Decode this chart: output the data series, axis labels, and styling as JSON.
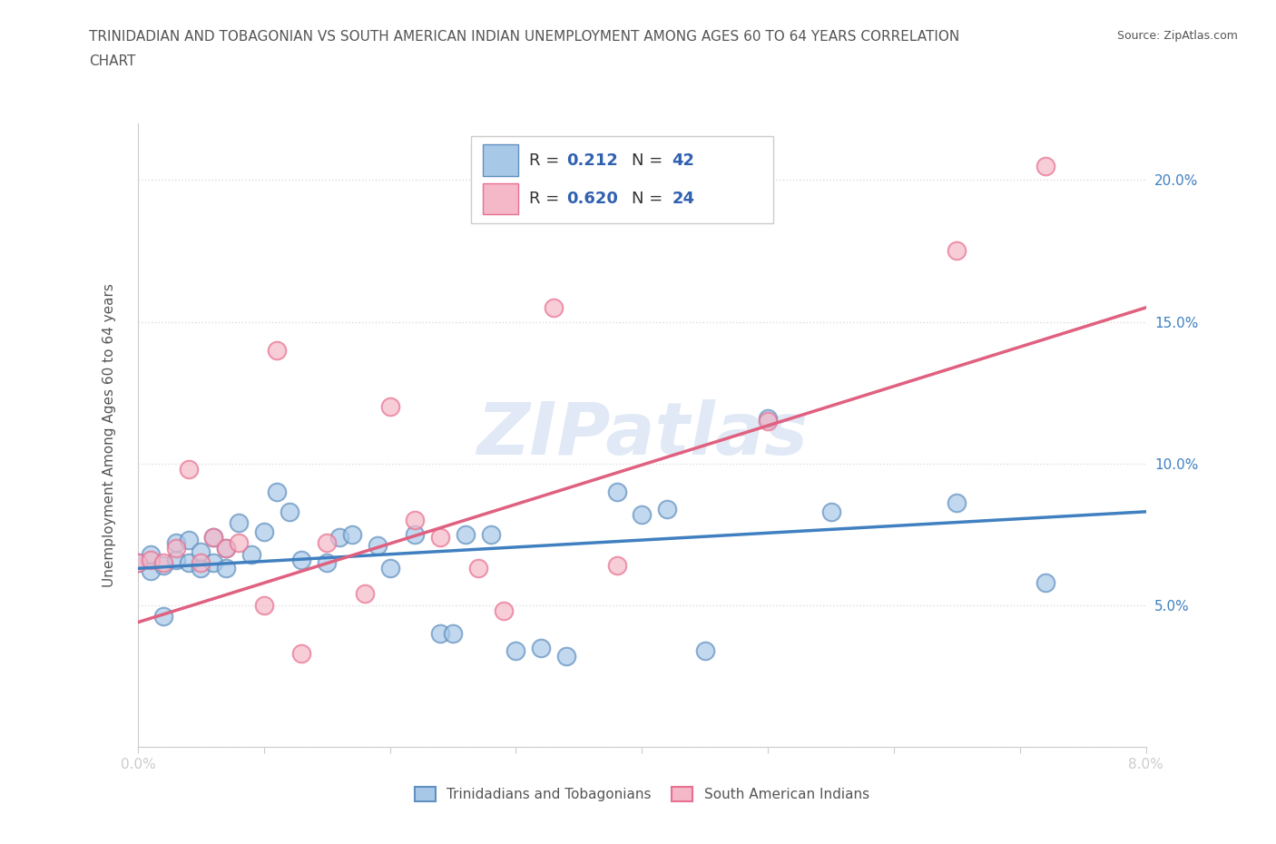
{
  "title_line1": "TRINIDADIAN AND TOBAGONIAN VS SOUTH AMERICAN INDIAN UNEMPLOYMENT AMONG AGES 60 TO 64 YEARS CORRELATION",
  "title_line2": "CHART",
  "source": "Source: ZipAtlas.com",
  "ylabel": "Unemployment Among Ages 60 to 64 years",
  "xlim": [
    0.0,
    0.08
  ],
  "ylim": [
    0.0,
    0.22
  ],
  "xticks": [
    0.0,
    0.01,
    0.02,
    0.03,
    0.04,
    0.05,
    0.06,
    0.07,
    0.08
  ],
  "yticks": [
    0.0,
    0.05,
    0.1,
    0.15,
    0.2
  ],
  "ytick_labels": [
    "",
    "5.0%",
    "10.0%",
    "15.0%",
    "20.0%"
  ],
  "xtick_labels": [
    "0.0%",
    "",
    "",
    "",
    "",
    "",
    "",
    "",
    "8.0%"
  ],
  "blue_color": "#a8c8e8",
  "pink_color": "#f4b8c8",
  "blue_edge_color": "#6090c0",
  "pink_edge_color": "#e87090",
  "blue_line_color": "#4080c0",
  "pink_line_color": "#e06080",
  "R_blue": 0.212,
  "N_blue": 42,
  "R_pink": 0.62,
  "N_pink": 24,
  "blue_scatter_x": [
    0.0,
    0.001,
    0.001,
    0.002,
    0.002,
    0.003,
    0.003,
    0.004,
    0.004,
    0.005,
    0.005,
    0.006,
    0.006,
    0.007,
    0.007,
    0.008,
    0.009,
    0.01,
    0.011,
    0.012,
    0.013,
    0.015,
    0.016,
    0.017,
    0.019,
    0.02,
    0.022,
    0.024,
    0.025,
    0.026,
    0.028,
    0.03,
    0.032,
    0.034,
    0.038,
    0.04,
    0.042,
    0.045,
    0.05,
    0.055,
    0.065,
    0.072
  ],
  "blue_scatter_y": [
    0.065,
    0.062,
    0.068,
    0.046,
    0.064,
    0.066,
    0.072,
    0.065,
    0.073,
    0.063,
    0.069,
    0.065,
    0.074,
    0.063,
    0.07,
    0.079,
    0.068,
    0.076,
    0.09,
    0.083,
    0.066,
    0.065,
    0.074,
    0.075,
    0.071,
    0.063,
    0.075,
    0.04,
    0.04,
    0.075,
    0.075,
    0.034,
    0.035,
    0.032,
    0.09,
    0.082,
    0.084,
    0.034,
    0.116,
    0.083,
    0.086,
    0.058
  ],
  "pink_scatter_x": [
    0.0,
    0.001,
    0.002,
    0.003,
    0.004,
    0.005,
    0.006,
    0.007,
    0.008,
    0.01,
    0.011,
    0.013,
    0.015,
    0.018,
    0.02,
    0.022,
    0.024,
    0.027,
    0.029,
    0.033,
    0.038,
    0.05,
    0.065,
    0.072
  ],
  "pink_scatter_y": [
    0.065,
    0.066,
    0.065,
    0.07,
    0.098,
    0.065,
    0.074,
    0.07,
    0.072,
    0.05,
    0.14,
    0.033,
    0.072,
    0.054,
    0.12,
    0.08,
    0.074,
    0.063,
    0.048,
    0.155,
    0.064,
    0.115,
    0.175,
    0.205
  ],
  "blue_trend_x": [
    0.0,
    0.08
  ],
  "blue_trend_y": [
    0.063,
    0.083
  ],
  "pink_trend_x": [
    0.0,
    0.08
  ],
  "pink_trend_y": [
    0.044,
    0.155
  ],
  "watermark": "ZIPatlas",
  "background_color": "#ffffff",
  "grid_color": "#dddddd",
  "text_color": "#555555",
  "value_color": "#3060b0"
}
